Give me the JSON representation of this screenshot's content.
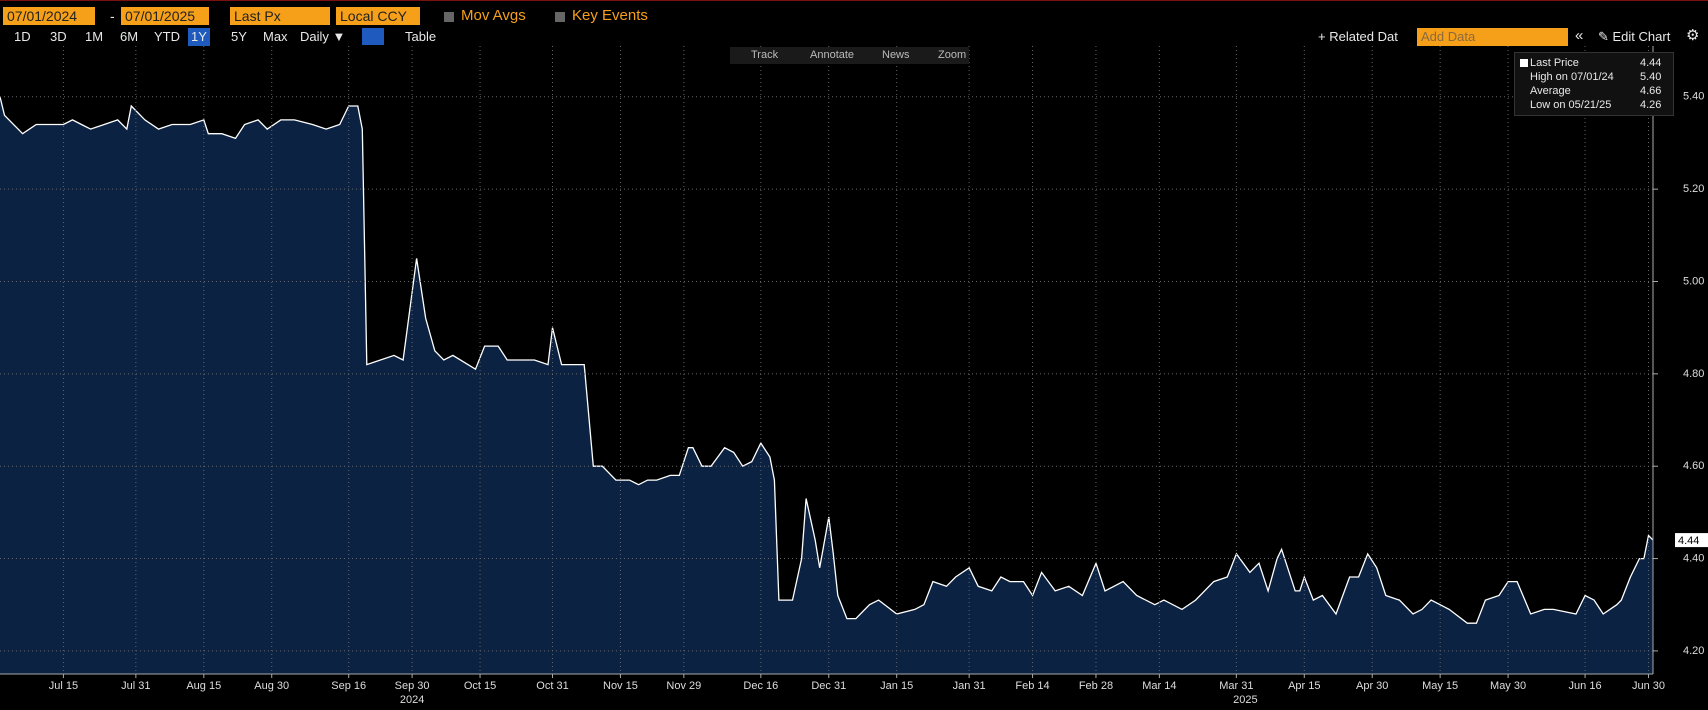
{
  "toolbar": {
    "start_date": "07/01/2024",
    "separator": "-",
    "end_date": "07/01/2025",
    "field": "Last Px",
    "currency": "Local CCY",
    "mov_avgs": "Mov Avgs",
    "key_events": "Key Events",
    "periods": [
      "1D",
      "3D",
      "1M",
      "6M",
      "YTD",
      "1Y",
      "5Y",
      "Max"
    ],
    "frequency": "Daily ▼",
    "table": "Table",
    "related": "+ Related Dat",
    "add_data": "Add Data",
    "edit_chart": "Edit Chart",
    "tools": [
      "Track",
      "Annotate",
      "News",
      "Zoom"
    ]
  },
  "legend": [
    {
      "label": "Last Price",
      "value": "4.44"
    },
    {
      "label": "High on 07/01/24",
      "value": "5.40"
    },
    {
      "label": "Average",
      "value": "4.66"
    },
    {
      "label": "Low on 05/21/25",
      "value": "4.26"
    }
  ],
  "chart_data": {
    "type": "area",
    "line_color": "#ffffff",
    "fill_color": "#0b2242",
    "grid": true,
    "xlim": [
      "2024-07-01",
      "2025-07-01"
    ],
    "ylim": [
      4.15,
      5.51
    ],
    "yticks": [
      {
        "value": 4.2,
        "label": "4.20"
      },
      {
        "value": 4.4,
        "label": "4.40"
      },
      {
        "value": 4.6,
        "label": "4.60"
      },
      {
        "value": 4.8,
        "label": "4.80"
      },
      {
        "value": 5.0,
        "label": "5.00"
      },
      {
        "value": 5.2,
        "label": "5.20"
      },
      {
        "value": 5.4,
        "label": "5.40"
      }
    ],
    "xticks": [
      {
        "value": "2024-07-15",
        "label": "Jul 15"
      },
      {
        "value": "2024-07-31",
        "label": "Jul 31"
      },
      {
        "value": "2024-08-15",
        "label": "Aug 15"
      },
      {
        "value": "2024-08-30",
        "label": "Aug 30"
      },
      {
        "value": "2024-09-16",
        "label": "Sep 16"
      },
      {
        "value": "2024-09-30",
        "label": "Sep 30"
      },
      {
        "value": "2024-10-15",
        "label": "Oct 15"
      },
      {
        "value": "2024-10-31",
        "label": "Oct 31"
      },
      {
        "value": "2024-11-15",
        "label": "Nov 15"
      },
      {
        "value": "2024-11-29",
        "label": "Nov 29"
      },
      {
        "value": "2024-12-16",
        "label": "Dec 16"
      },
      {
        "value": "2024-12-31",
        "label": "Dec 31"
      },
      {
        "value": "2025-01-15",
        "label": "Jan 15"
      },
      {
        "value": "2025-01-31",
        "label": "Jan 31"
      },
      {
        "value": "2025-02-14",
        "label": "Feb 14"
      },
      {
        "value": "2025-02-28",
        "label": "Feb 28"
      },
      {
        "value": "2025-03-14",
        "label": "Mar 14"
      },
      {
        "value": "2025-03-31",
        "label": "Mar 31"
      },
      {
        "value": "2025-04-15",
        "label": "Apr 15"
      },
      {
        "value": "2025-04-30",
        "label": "Apr 30"
      },
      {
        "value": "2025-05-15",
        "label": "May 15"
      },
      {
        "value": "2025-05-30",
        "label": "May 30"
      },
      {
        "value": "2025-06-16",
        "label": "Jun 16"
      },
      {
        "value": "2025-06-30",
        "label": "Jun 30"
      }
    ],
    "year_labels": [
      {
        "value": "2024-09-30",
        "label": "2024"
      },
      {
        "value": "2025-04-02",
        "label": "2025"
      }
    ],
    "x": [
      "2024-07-01",
      "2024-07-02",
      "2024-07-05",
      "2024-07-06",
      "2024-07-09",
      "2024-07-15",
      "2024-07-17",
      "2024-07-19",
      "2024-07-21",
      "2024-07-24",
      "2024-07-27",
      "2024-07-29",
      "2024-07-30",
      "2024-08-02",
      "2024-08-05",
      "2024-08-08",
      "2024-08-12",
      "2024-08-15",
      "2024-08-16",
      "2024-08-19",
      "2024-08-22",
      "2024-08-24",
      "2024-08-27",
      "2024-08-29",
      "2024-09-01",
      "2024-09-04",
      "2024-09-08",
      "2024-09-11",
      "2024-09-14",
      "2024-09-16",
      "2024-09-18",
      "2024-09-19",
      "2024-09-20",
      "2024-09-23",
      "2024-09-26",
      "2024-09-28",
      "2024-10-01",
      "2024-10-03",
      "2024-10-05",
      "2024-10-07",
      "2024-10-09",
      "2024-10-14",
      "2024-10-16",
      "2024-10-19",
      "2024-10-21",
      "2024-10-24",
      "2024-10-27",
      "2024-10-30",
      "2024-10-31",
      "2024-11-02",
      "2024-11-05",
      "2024-11-07",
      "2024-11-09",
      "2024-11-11",
      "2024-11-14",
      "2024-11-17",
      "2024-11-19",
      "2024-11-21",
      "2024-11-23",
      "2024-11-26",
      "2024-11-28",
      "2024-11-30",
      "2024-12-01",
      "2024-12-03",
      "2024-12-05",
      "2024-12-08",
      "2024-12-10",
      "2024-12-12",
      "2024-12-14",
      "2024-12-16",
      "2024-12-18",
      "2024-12-19",
      "2024-12-20",
      "2024-12-23",
      "2024-12-25",
      "2024-12-26",
      "2024-12-28",
      "2024-12-29",
      "2024-12-31",
      "2025-01-01",
      "2025-01-02",
      "2025-01-04",
      "2025-01-06",
      "2025-01-09",
      "2025-01-11",
      "2025-01-15",
      "2025-01-19",
      "2025-01-21",
      "2025-01-23",
      "2025-01-26",
      "2025-01-28",
      "2025-01-31",
      "2025-02-02",
      "2025-02-05",
      "2025-02-07",
      "2025-02-09",
      "2025-02-12",
      "2025-02-14",
      "2025-02-16",
      "2025-02-19",
      "2025-02-22",
      "2025-02-25",
      "2025-02-28",
      "2025-03-02",
      "2025-03-06",
      "2025-03-09",
      "2025-03-13",
      "2025-03-15",
      "2025-03-19",
      "2025-03-22",
      "2025-03-26",
      "2025-03-29",
      "2025-03-31",
      "2025-04-03",
      "2025-04-05",
      "2025-04-07",
      "2025-04-09",
      "2025-04-10",
      "2025-04-13",
      "2025-04-14",
      "2025-04-15",
      "2025-04-17",
      "2025-04-19",
      "2025-04-22",
      "2025-04-25",
      "2025-04-27",
      "2025-04-29",
      "2025-05-01",
      "2025-05-03",
      "2025-05-06",
      "2025-05-09",
      "2025-05-11",
      "2025-05-13",
      "2025-05-15",
      "2025-05-17",
      "2025-05-21",
      "2025-05-23",
      "2025-05-25",
      "2025-05-28",
      "2025-05-30",
      "2025-06-01",
      "2025-06-04",
      "2025-06-07",
      "2025-06-09",
      "2025-06-14",
      "2025-06-16",
      "2025-06-18",
      "2025-06-20",
      "2025-06-23",
      "2025-06-24",
      "2025-06-26",
      "2025-06-28",
      "2025-06-29",
      "2025-06-30",
      "2025-07-01"
    ],
    "series": [
      {
        "name": "Last Price",
        "values": [
          5.4,
          5.36,
          5.33,
          5.32,
          5.34,
          5.34,
          5.35,
          5.34,
          5.33,
          5.34,
          5.35,
          5.33,
          5.38,
          5.35,
          5.33,
          5.34,
          5.34,
          5.35,
          5.32,
          5.32,
          5.31,
          5.34,
          5.35,
          5.33,
          5.35,
          5.35,
          5.34,
          5.33,
          5.34,
          5.38,
          5.38,
          5.33,
          4.82,
          4.83,
          4.84,
          4.83,
          5.05,
          4.92,
          4.85,
          4.83,
          4.84,
          4.81,
          4.86,
          4.86,
          4.83,
          4.83,
          4.83,
          4.82,
          4.9,
          4.82,
          4.82,
          4.82,
          4.6,
          4.6,
          4.57,
          4.57,
          4.56,
          4.57,
          4.57,
          4.58,
          4.58,
          4.64,
          4.64,
          4.6,
          4.6,
          4.64,
          4.63,
          4.6,
          4.61,
          4.65,
          4.62,
          4.57,
          4.31,
          4.31,
          4.4,
          4.53,
          4.44,
          4.38,
          4.49,
          4.41,
          4.32,
          4.27,
          4.27,
          4.3,
          4.31,
          4.28,
          4.29,
          4.3,
          4.35,
          4.34,
          4.36,
          4.38,
          4.34,
          4.33,
          4.36,
          4.35,
          4.35,
          4.32,
          4.37,
          4.33,
          4.34,
          4.32,
          4.39,
          4.33,
          4.35,
          4.32,
          4.3,
          4.31,
          4.29,
          4.31,
          4.35,
          4.36,
          4.41,
          4.37,
          4.39,
          4.33,
          4.4,
          4.42,
          4.33,
          4.33,
          4.36,
          4.31,
          4.32,
          4.28,
          4.36,
          4.36,
          4.41,
          4.38,
          4.32,
          4.31,
          4.28,
          4.29,
          4.31,
          4.3,
          4.29,
          4.26,
          4.26,
          4.31,
          4.32,
          4.35,
          4.35,
          4.28,
          4.29,
          4.29,
          4.28,
          4.32,
          4.31,
          4.28,
          4.3,
          4.31,
          4.36,
          4.4,
          4.4,
          4.45,
          4.44
        ]
      }
    ]
  }
}
